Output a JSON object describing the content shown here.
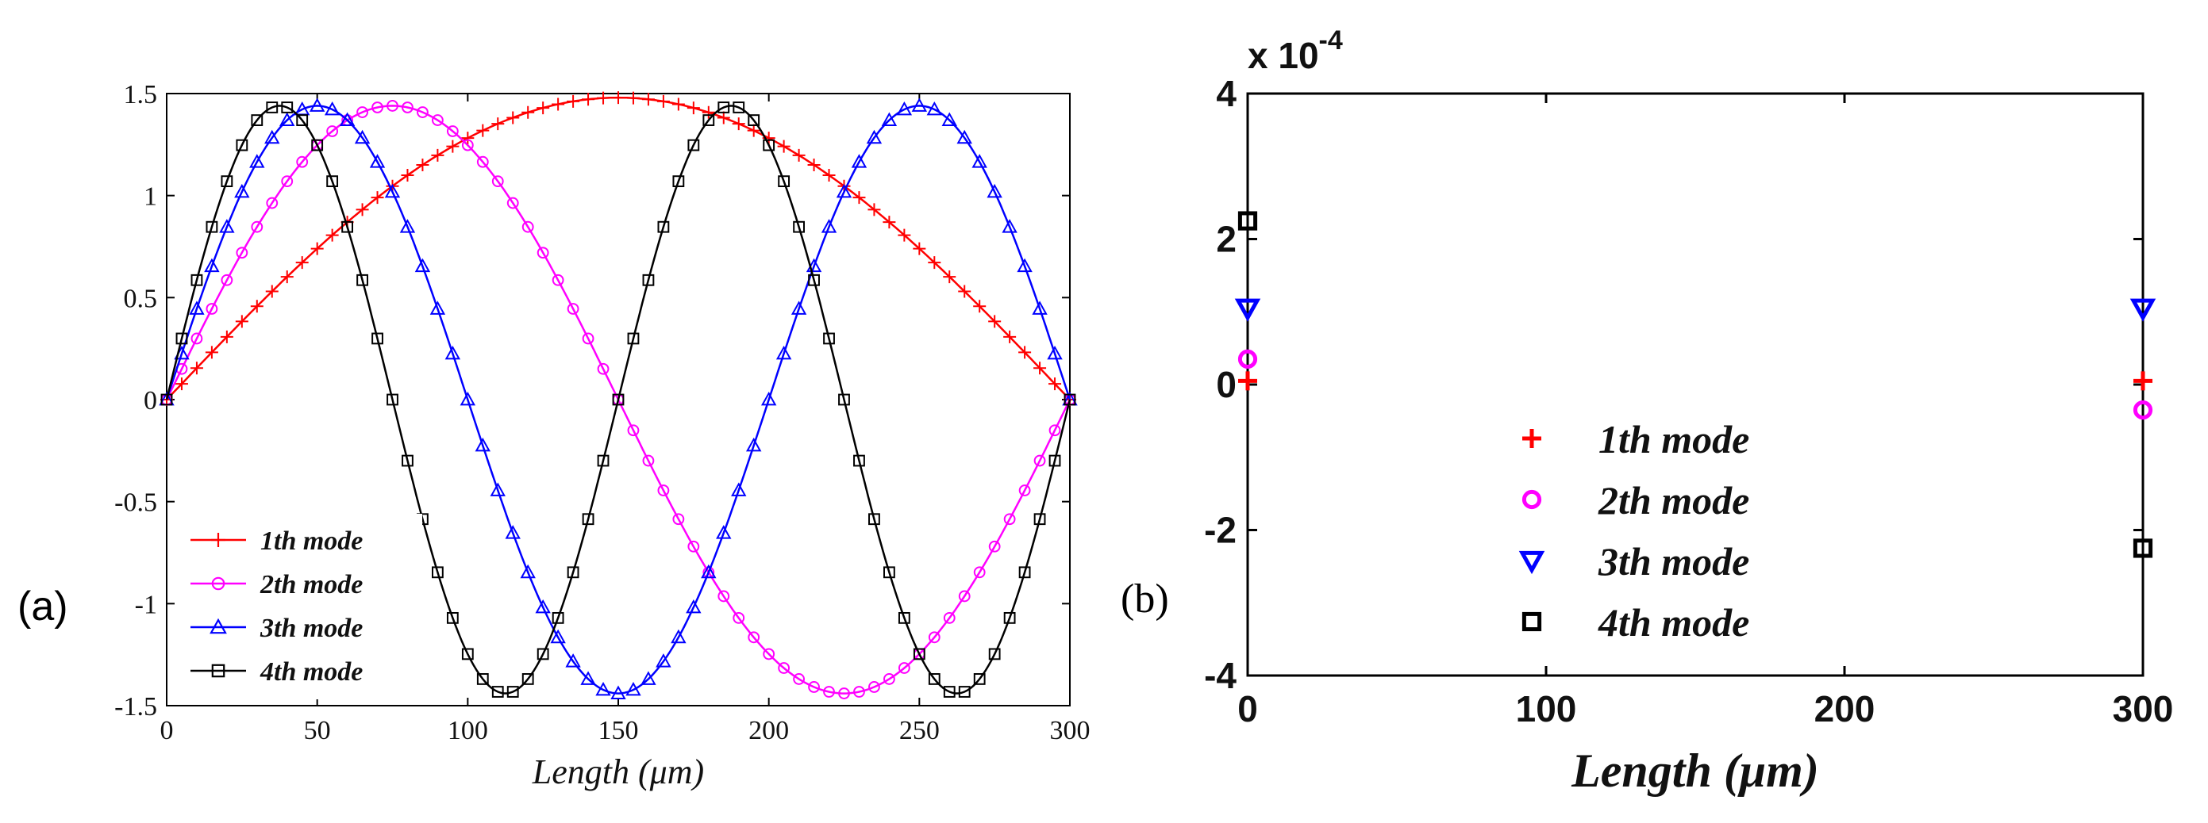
{
  "chart_data": [
    {
      "id": "a",
      "panel_label": "(a)",
      "type": "line",
      "title": "",
      "xlabel": "Length (μm)",
      "ylabel": "",
      "xlim": [
        0,
        300
      ],
      "ylim": [
        -1.5,
        1.5
      ],
      "xticks": [
        "0",
        "50",
        "100",
        "150",
        "200",
        "250",
        "300"
      ],
      "yticks": [
        "1.5",
        "1",
        "0.5",
        "0",
        "-0.5",
        "-1",
        "-1.5"
      ],
      "legend_position": "lower-left",
      "series": [
        {
          "name": "1th mode",
          "marker": "plus",
          "color": "#ff0000",
          "amplitude": 1.48,
          "half_waves": 1,
          "points": 61
        },
        {
          "name": "2th mode",
          "marker": "circle",
          "color": "#ff00ff",
          "amplitude": 1.44,
          "half_waves": 2,
          "points": 61
        },
        {
          "name": "3th mode",
          "marker": "triangle",
          "color": "#0000ff",
          "amplitude": 1.44,
          "half_waves": 3,
          "points": 61
        },
        {
          "name": "4th mode",
          "marker": "square",
          "color": "#000000",
          "amplitude": 1.44,
          "half_waves": 4,
          "points": 61
        }
      ]
    },
    {
      "id": "b",
      "panel_label": "(b)",
      "type": "scatter",
      "title": "",
      "xlabel": "Length (μm)",
      "ylabel": "",
      "exponent_label": "x 10",
      "exponent_power": "-4",
      "xlim": [
        0,
        300
      ],
      "ylim": [
        -4,
        4
      ],
      "xticks": [
        "0",
        "100",
        "200",
        "300"
      ],
      "yticks": [
        "4",
        "2",
        "0",
        "-2",
        "-4"
      ],
      "legend_position": "lower-center",
      "series": [
        {
          "name": "1th mode",
          "marker": "plus",
          "color": "#ff0000",
          "x": [
            0,
            300
          ],
          "y": [
            0.05,
            0.05
          ]
        },
        {
          "name": "2th mode",
          "marker": "circle",
          "color": "#ff00ff",
          "x": [
            0,
            300
          ],
          "y": [
            0.35,
            -0.35
          ]
        },
        {
          "name": "3th mode",
          "marker": "triangle-down",
          "color": "#0000ff",
          "x": [
            0,
            300
          ],
          "y": [
            1.05,
            1.05
          ]
        },
        {
          "name": "4th mode",
          "marker": "square",
          "color": "#000000",
          "x": [
            0,
            300
          ],
          "y": [
            2.25,
            -2.25
          ]
        }
      ]
    }
  ]
}
